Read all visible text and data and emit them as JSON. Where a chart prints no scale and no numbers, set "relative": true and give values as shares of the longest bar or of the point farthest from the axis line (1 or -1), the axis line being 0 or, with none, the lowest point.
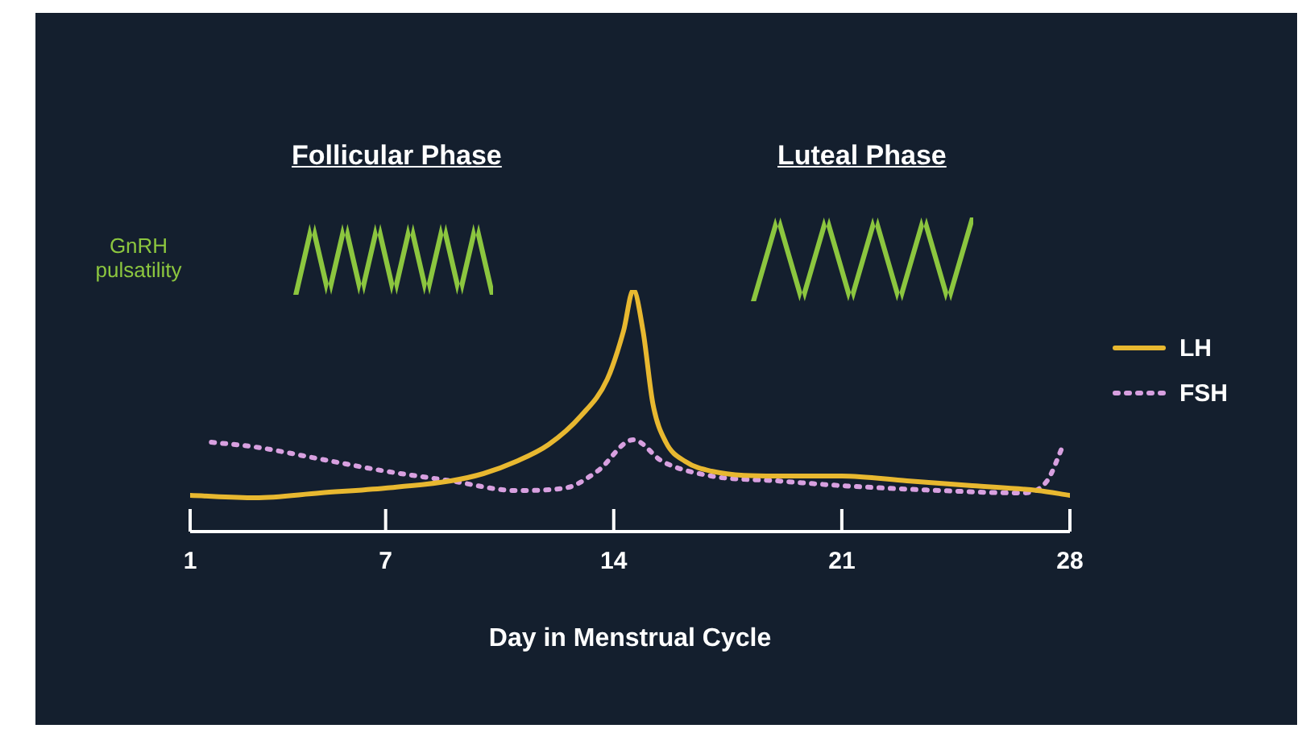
{
  "chart_data": {
    "type": "line",
    "relative": true,
    "xlabel": "Day in Menstrual Cycle",
    "xlim": [
      1,
      28
    ],
    "xticks": [
      1,
      7,
      14,
      21,
      28
    ],
    "grid": false,
    "legend": "right",
    "marker": "none",
    "annotations": [
      "Follicular Phase",
      "Luteal Phase",
      "GnRH pulsatility"
    ],
    "series": [
      {
        "name": "LH",
        "color": "#e8b830",
        "line_style": "solid",
        "x": [
          1,
          3,
          5,
          7,
          9,
          10,
          11,
          12,
          13,
          13.8,
          14.3,
          14.6,
          14.9,
          15.2,
          15.6,
          16.2,
          17,
          19,
          21,
          23,
          25,
          27,
          28
        ],
        "values": [
          0.15,
          0.14,
          0.16,
          0.18,
          0.21,
          0.24,
          0.29,
          0.36,
          0.48,
          0.63,
          0.83,
          1,
          0.83,
          0.53,
          0.37,
          0.29,
          0.25,
          0.23,
          0.23,
          0.21,
          0.19,
          0.17,
          0.15
        ]
      },
      {
        "name": "FSH",
        "color": "#d8a0e0",
        "line_style": "dotted",
        "x": [
          1.65,
          3,
          5,
          7,
          9,
          11,
          12.5,
          13.5,
          14.6,
          15.5,
          17,
          19,
          21,
          24,
          26.5,
          27.3,
          27.8
        ],
        "values": [
          0.37,
          0.35,
          0.3,
          0.25,
          0.21,
          0.17,
          0.18,
          0.25,
          0.38,
          0.29,
          0.23,
          0.21,
          0.19,
          0.17,
          0.16,
          0.21,
          0.36
        ]
      }
    ]
  }
}
